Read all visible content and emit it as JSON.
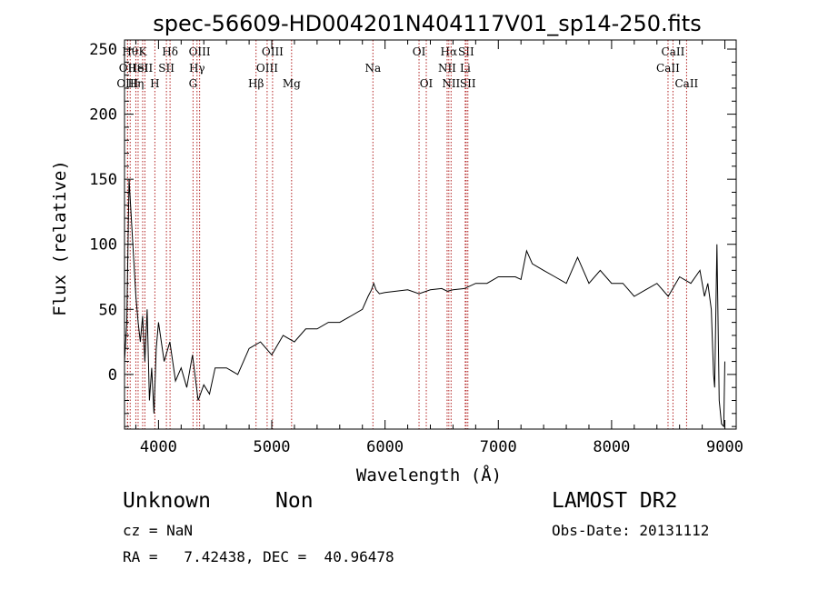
{
  "chart_data": {
    "type": "line",
    "title": "spec-56609-HD004201N404117V01_sp14-250.fits",
    "xlabel": "Wavelength (Å)",
    "ylabel": "Flux (relative)",
    "xlim": [
      3700,
      9100
    ],
    "ylim": [
      -42,
      257
    ],
    "xticks": [
      4000,
      5000,
      6000,
      7000,
      8000,
      9000
    ],
    "yticks": [
      0,
      50,
      100,
      150,
      200,
      250
    ],
    "grid": false,
    "series": [
      {
        "x": [
          3700,
          3720,
          3740,
          3760,
          3780,
          3800,
          3820,
          3840,
          3860,
          3880,
          3900,
          3920,
          3940,
          3960,
          3980,
          4000,
          4050,
          4100,
          4150,
          4200,
          4250,
          4300,
          4350,
          4400,
          4450,
          4500,
          4600,
          4700,
          4800,
          4900,
          5000,
          5100,
          5200,
          5300,
          5400,
          5500,
          5600,
          5700,
          5800,
          5850,
          5880,
          5900,
          5920,
          5950,
          6000,
          6100,
          6200,
          6300,
          6400,
          6500,
          6550,
          6600,
          6700,
          6800,
          6900,
          7000,
          7100,
          7150,
          7200,
          7250,
          7300,
          7400,
          7500,
          7600,
          7700,
          7800,
          7900,
          8000,
          8100,
          8200,
          8300,
          8400,
          8500,
          8600,
          8700,
          8780,
          8820,
          8850,
          8880,
          8900,
          8910,
          8930,
          8950,
          8970,
          8990,
          9000
        ],
        "y": [
          10,
          40,
          150,
          120,
          90,
          60,
          40,
          25,
          45,
          10,
          50,
          -20,
          5,
          -30,
          20,
          40,
          10,
          25,
          -5,
          5,
          -10,
          15,
          -20,
          -8,
          -15,
          5,
          5,
          0,
          20,
          25,
          15,
          30,
          25,
          35,
          35,
          40,
          40,
          45,
          50,
          60,
          65,
          70,
          65,
          62,
          63,
          64,
          65,
          62,
          65,
          66,
          64,
          65,
          66,
          70,
          70,
          75,
          75,
          75,
          73,
          95,
          85,
          80,
          75,
          70,
          90,
          70,
          80,
          70,
          70,
          60,
          65,
          70,
          60,
          75,
          70,
          80,
          60,
          70,
          50,
          0,
          -10,
          100,
          -20,
          -38,
          -40,
          10
        ],
        "color": "#000000"
      }
    ],
    "lines": [
      {
        "x": 3750,
        "label": "Hθ",
        "row": 1
      },
      {
        "x": 3727,
        "label": "OII",
        "row": 2
      },
      {
        "x": 3727,
        "label": "OIII",
        "row": 3
      },
      {
        "x": 3860,
        "label": "K",
        "row": 1
      },
      {
        "x": 3820,
        "label": "HeI",
        "row": 2
      },
      {
        "x": 3880,
        "label": "SII",
        "row": 2
      },
      {
        "x": 3800,
        "label": "Hη",
        "row": 3
      },
      {
        "x": 3968,
        "label": "H",
        "row": 3
      },
      {
        "x": 4102,
        "label": "Hδ",
        "row": 1
      },
      {
        "x": 4070,
        "label": "SII",
        "row": 2
      },
      {
        "x": 4363,
        "label": "OIII",
        "row": 1
      },
      {
        "x": 4340,
        "label": "Hγ",
        "row": 2
      },
      {
        "x": 4305,
        "label": "G",
        "row": 3
      },
      {
        "x": 4861,
        "label": "Hβ",
        "row": 3
      },
      {
        "x": 5007,
        "label": "OIII",
        "row": 1
      },
      {
        "x": 4959,
        "label": "OIII",
        "row": 2
      },
      {
        "x": 5175,
        "label": "Mg",
        "row": 3
      },
      {
        "x": 5893,
        "label": "Na",
        "row": 2
      },
      {
        "x": 6300,
        "label": "OI",
        "row": 1
      },
      {
        "x": 6364,
        "label": "OI",
        "row": 3
      },
      {
        "x": 6563,
        "label": "Hα",
        "row": 1
      },
      {
        "x": 6548,
        "label": "NII",
        "row": 2
      },
      {
        "x": 6583,
        "label": "NII",
        "row": 3
      },
      {
        "x": 6716,
        "label": "SII",
        "row": 1
      },
      {
        "x": 6708,
        "label": "Li",
        "row": 2
      },
      {
        "x": 6731,
        "label": "SII",
        "row": 3
      },
      {
        "x": 8542,
        "label": "CaII",
        "row": 1
      },
      {
        "x": 8498,
        "label": "CaII",
        "row": 2
      },
      {
        "x": 8662,
        "label": "CaII",
        "row": 3
      }
    ]
  },
  "info": {
    "class_label": "Unknown",
    "subclass_label": "Non",
    "cz": "cz = NaN",
    "coords": "RA =   7.42438, DEC =  40.96478",
    "survey": "LAMOST DR2",
    "obs_date": "Obs-Date: 20131112"
  }
}
